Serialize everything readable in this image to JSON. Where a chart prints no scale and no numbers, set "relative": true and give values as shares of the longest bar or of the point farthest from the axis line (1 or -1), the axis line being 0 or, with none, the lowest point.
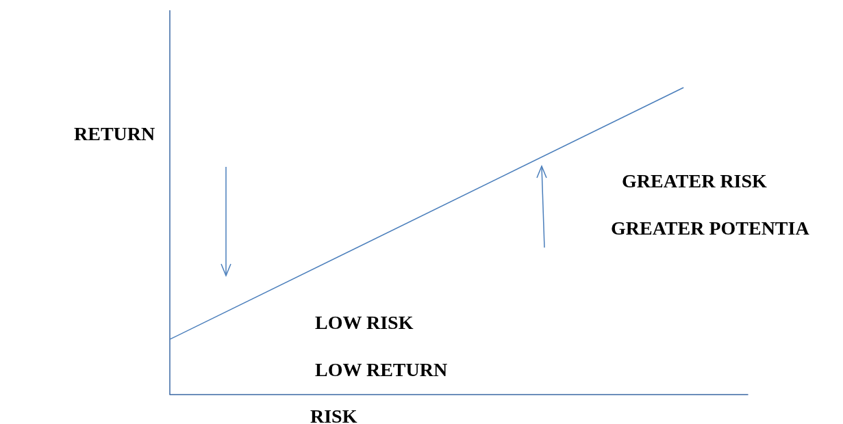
{
  "chart_data": {
    "type": "line",
    "relative": true,
    "xlabel": "RISK",
    "ylabel": "RETURN",
    "categories": [
      null,
      null,
      null,
      null,
      null,
      null,
      null,
      null,
      null,
      null
    ],
    "values": [
      0.18,
      null,
      null,
      null,
      null,
      null,
      null,
      null,
      1,
      null
    ],
    "color": "#4a7ebb",
    "marker": "none",
    "grid": false,
    "annotations": [
      "GREATER RISK",
      "GREATER POTENTIA",
      "LOW RISK",
      "LOW RETURN"
    ]
  }
}
